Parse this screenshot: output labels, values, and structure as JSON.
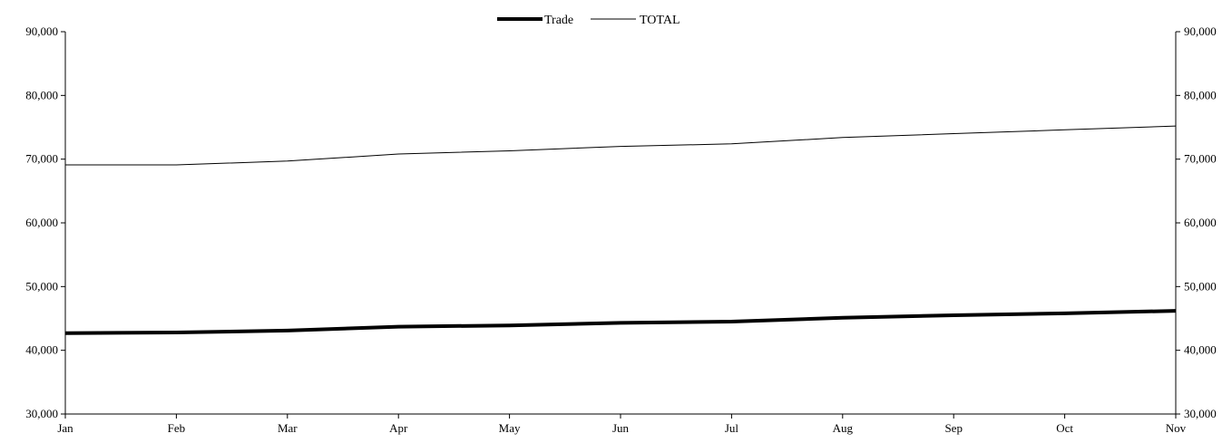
{
  "chart_data": {
    "type": "line",
    "categories": [
      "Jan",
      "Feb",
      "Mar",
      "Apr",
      "May",
      "Jun",
      "Jul",
      "Aug",
      "Sep",
      "Oct",
      "Nov"
    ],
    "series": [
      {
        "name": "Trade",
        "values": [
          42700,
          42800,
          43100,
          43700,
          43900,
          44300,
          44500,
          45100,
          45500,
          45800,
          46200
        ],
        "color": "#000000",
        "line_style": "thick"
      },
      {
        "name": "TOTAL",
        "values": [
          69100,
          69100,
          69700,
          70800,
          71300,
          72000,
          72400,
          73400,
          74000,
          74600,
          75200
        ],
        "color": "#000000",
        "line_style": "thin"
      }
    ],
    "y_ticks": [
      "90,000",
      "80,000",
      "70,000",
      "60,000",
      "50,000",
      "40,000",
      "30,000"
    ],
    "y_tick_values": [
      90000,
      80000,
      70000,
      60000,
      50000,
      40000,
      30000
    ],
    "ylim": [
      30000,
      90000
    ],
    "secondary_y_axis": true,
    "grid": false,
    "legend_position": "top-center"
  }
}
